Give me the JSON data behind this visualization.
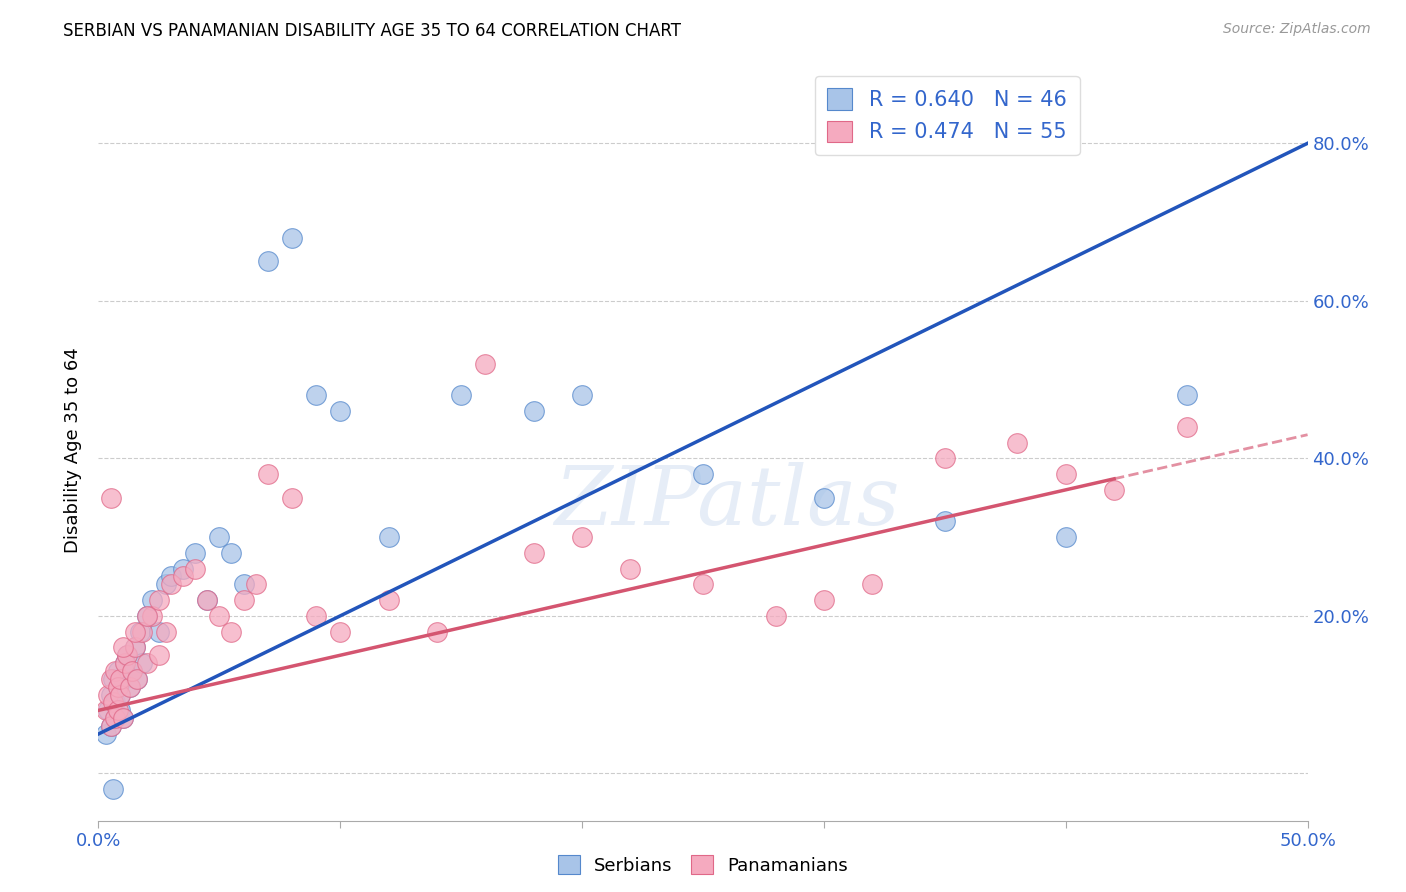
{
  "title": "SERBIAN VS PANAMANIAN DISABILITY AGE 35 TO 64 CORRELATION CHART",
  "source": "Source: ZipAtlas.com",
  "ylabel": "Disability Age 35 to 64",
  "xlim": [
    0.0,
    0.5
  ],
  "ylim": [
    -0.06,
    0.88
  ],
  "yticks": [
    0.0,
    0.2,
    0.4,
    0.6,
    0.8
  ],
  "xticks": [
    0.0,
    0.1,
    0.2,
    0.3,
    0.4,
    0.5
  ],
  "serbian_color": "#a8c4e8",
  "panamanian_color": "#f5aabf",
  "serbian_edge_color": "#5588cc",
  "panamanian_edge_color": "#e06888",
  "serbian_line_color": "#2255bb",
  "panamanian_line_color": "#d45570",
  "legend_serbian_R": "0.640",
  "legend_serbian_N": "46",
  "legend_panamanian_R": "0.474",
  "legend_panamanian_N": "55",
  "watermark": "ZIPatlas",
  "serbian_x": [
    0.003,
    0.004,
    0.005,
    0.005,
    0.006,
    0.007,
    0.007,
    0.008,
    0.008,
    0.009,
    0.009,
    0.01,
    0.01,
    0.011,
    0.012,
    0.013,
    0.014,
    0.015,
    0.016,
    0.017,
    0.018,
    0.02,
    0.022,
    0.025,
    0.028,
    0.03,
    0.035,
    0.04,
    0.045,
    0.05,
    0.055,
    0.06,
    0.07,
    0.08,
    0.09,
    0.1,
    0.12,
    0.15,
    0.18,
    0.2,
    0.25,
    0.3,
    0.35,
    0.4,
    0.45,
    0.006
  ],
  "serbian_y": [
    0.05,
    0.08,
    0.1,
    0.06,
    0.12,
    0.09,
    0.07,
    0.13,
    0.11,
    0.08,
    0.1,
    0.12,
    0.07,
    0.14,
    0.15,
    0.11,
    0.13,
    0.16,
    0.12,
    0.18,
    0.14,
    0.2,
    0.22,
    0.18,
    0.24,
    0.25,
    0.26,
    0.28,
    0.22,
    0.3,
    0.28,
    0.24,
    0.65,
    0.68,
    0.48,
    0.46,
    0.3,
    0.48,
    0.46,
    0.48,
    0.38,
    0.35,
    0.32,
    0.3,
    0.48,
    -0.02
  ],
  "panamanian_x": [
    0.003,
    0.004,
    0.005,
    0.005,
    0.006,
    0.007,
    0.007,
    0.008,
    0.008,
    0.009,
    0.009,
    0.01,
    0.011,
    0.012,
    0.013,
    0.014,
    0.015,
    0.016,
    0.018,
    0.02,
    0.022,
    0.025,
    0.028,
    0.03,
    0.035,
    0.04,
    0.045,
    0.05,
    0.055,
    0.06,
    0.065,
    0.07,
    0.08,
    0.09,
    0.1,
    0.12,
    0.14,
    0.16,
    0.18,
    0.2,
    0.22,
    0.25,
    0.28,
    0.3,
    0.32,
    0.35,
    0.38,
    0.4,
    0.42,
    0.45,
    0.005,
    0.01,
    0.015,
    0.02,
    0.025
  ],
  "panamanian_y": [
    0.08,
    0.1,
    0.06,
    0.12,
    0.09,
    0.07,
    0.13,
    0.11,
    0.08,
    0.1,
    0.12,
    0.07,
    0.14,
    0.15,
    0.11,
    0.13,
    0.16,
    0.12,
    0.18,
    0.14,
    0.2,
    0.22,
    0.18,
    0.24,
    0.25,
    0.26,
    0.22,
    0.2,
    0.18,
    0.22,
    0.24,
    0.38,
    0.35,
    0.2,
    0.18,
    0.22,
    0.18,
    0.52,
    0.28,
    0.3,
    0.26,
    0.24,
    0.2,
    0.22,
    0.24,
    0.4,
    0.42,
    0.38,
    0.36,
    0.44,
    0.35,
    0.16,
    0.18,
    0.2,
    0.15
  ]
}
